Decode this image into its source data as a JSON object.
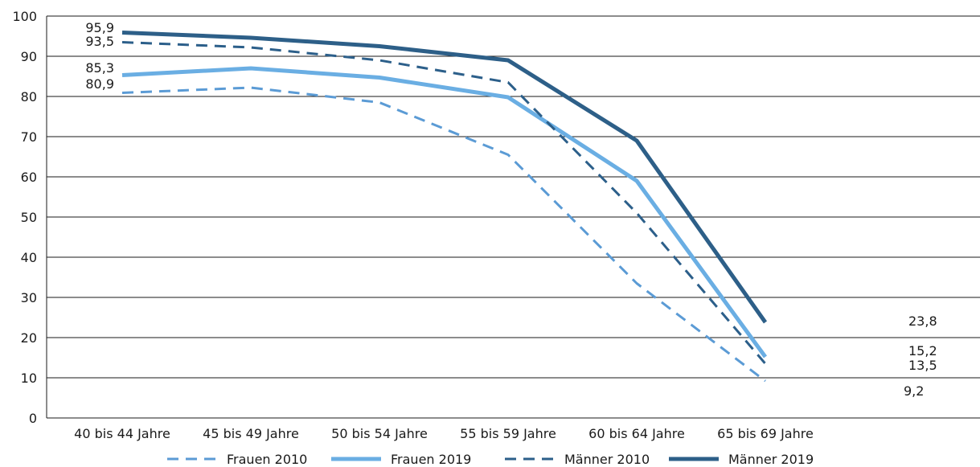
{
  "chart_data": {
    "type": "line",
    "title": "",
    "xlabel": "",
    "ylabel": "",
    "categories": [
      "40 bis 44 Jahre",
      "45 bis 49 Jahre",
      "50 bis 54 Jahre",
      "55 bis 59 Jahre",
      "60 bis 64 Jahre",
      "65 bis 69 Jahre"
    ],
    "y_ticks": [
      "0",
      "10",
      "20",
      "30",
      "40",
      "50",
      "60",
      "70",
      "80",
      "90",
      "100"
    ],
    "ylim": [
      0,
      100
    ],
    "grid": "horizontal",
    "legend_position": "bottom",
    "series": [
      {
        "name": "Frauen 2010",
        "color": "#5b9bd5",
        "style": "dashed",
        "width": 3,
        "values": [
          80.9,
          82.2,
          78.5,
          65.5,
          33.5,
          9.2
        ],
        "labels": {
          "0": "80,9",
          "5": "9,2"
        }
      },
      {
        "name": "Frauen 2019",
        "color": "#6aaee3",
        "style": "solid",
        "width": 5,
        "values": [
          85.3,
          87.0,
          84.7,
          79.8,
          59.0,
          15.2
        ],
        "labels": {
          "0": "85,3",
          "5": "15,2"
        }
      },
      {
        "name": "Männer 2010",
        "color": "#2c5f8a",
        "style": "dashed",
        "width": 3,
        "values": [
          93.5,
          92.2,
          89.0,
          83.5,
          51.0,
          13.5
        ],
        "labels": {
          "0": "93,5",
          "5": "13,5"
        }
      },
      {
        "name": "Männer 2019",
        "color": "#2d5f88",
        "style": "solid",
        "width": 5,
        "values": [
          95.9,
          94.6,
          92.5,
          89.0,
          69.0,
          23.8
        ],
        "labels": {
          "0": "95,9",
          "5": "23,8"
        }
      }
    ]
  }
}
